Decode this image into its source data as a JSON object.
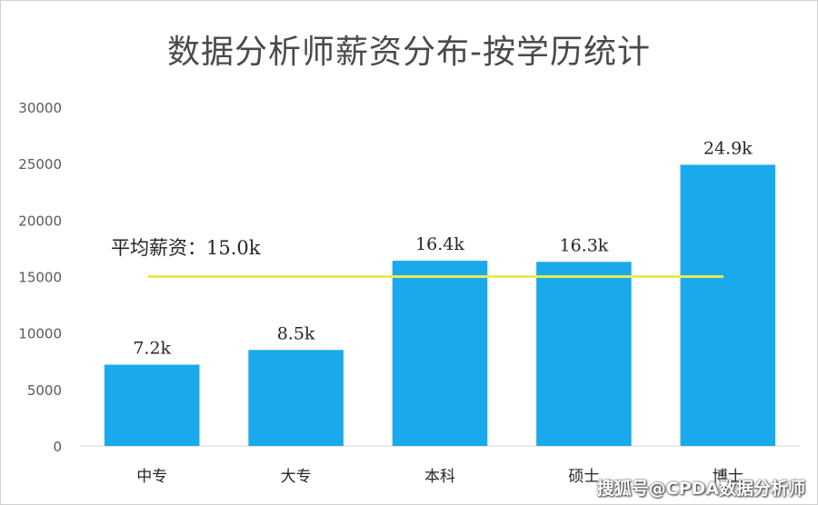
{
  "chart_data": {
    "type": "bar",
    "title": "数据分析师薪资分布-按学历统计",
    "categories": [
      "中专",
      "大专",
      "本科",
      "硕士",
      "博士"
    ],
    "values": [
      7200,
      8500,
      16400,
      16300,
      24900
    ],
    "data_labels": [
      "7.2k",
      "8.5k",
      "16.4k",
      "16.3k",
      "24.9k"
    ],
    "ylim": [
      0,
      30000
    ],
    "yticks": [
      0,
      5000,
      10000,
      15000,
      20000,
      25000,
      30000
    ],
    "grid": false,
    "bar_color": "#19a9ec",
    "reference_line": {
      "value": 15000,
      "label": "平均薪资：15.0k",
      "color": "#e8ec4e"
    }
  },
  "watermark": "搜狐号@CPDA数据分析师"
}
